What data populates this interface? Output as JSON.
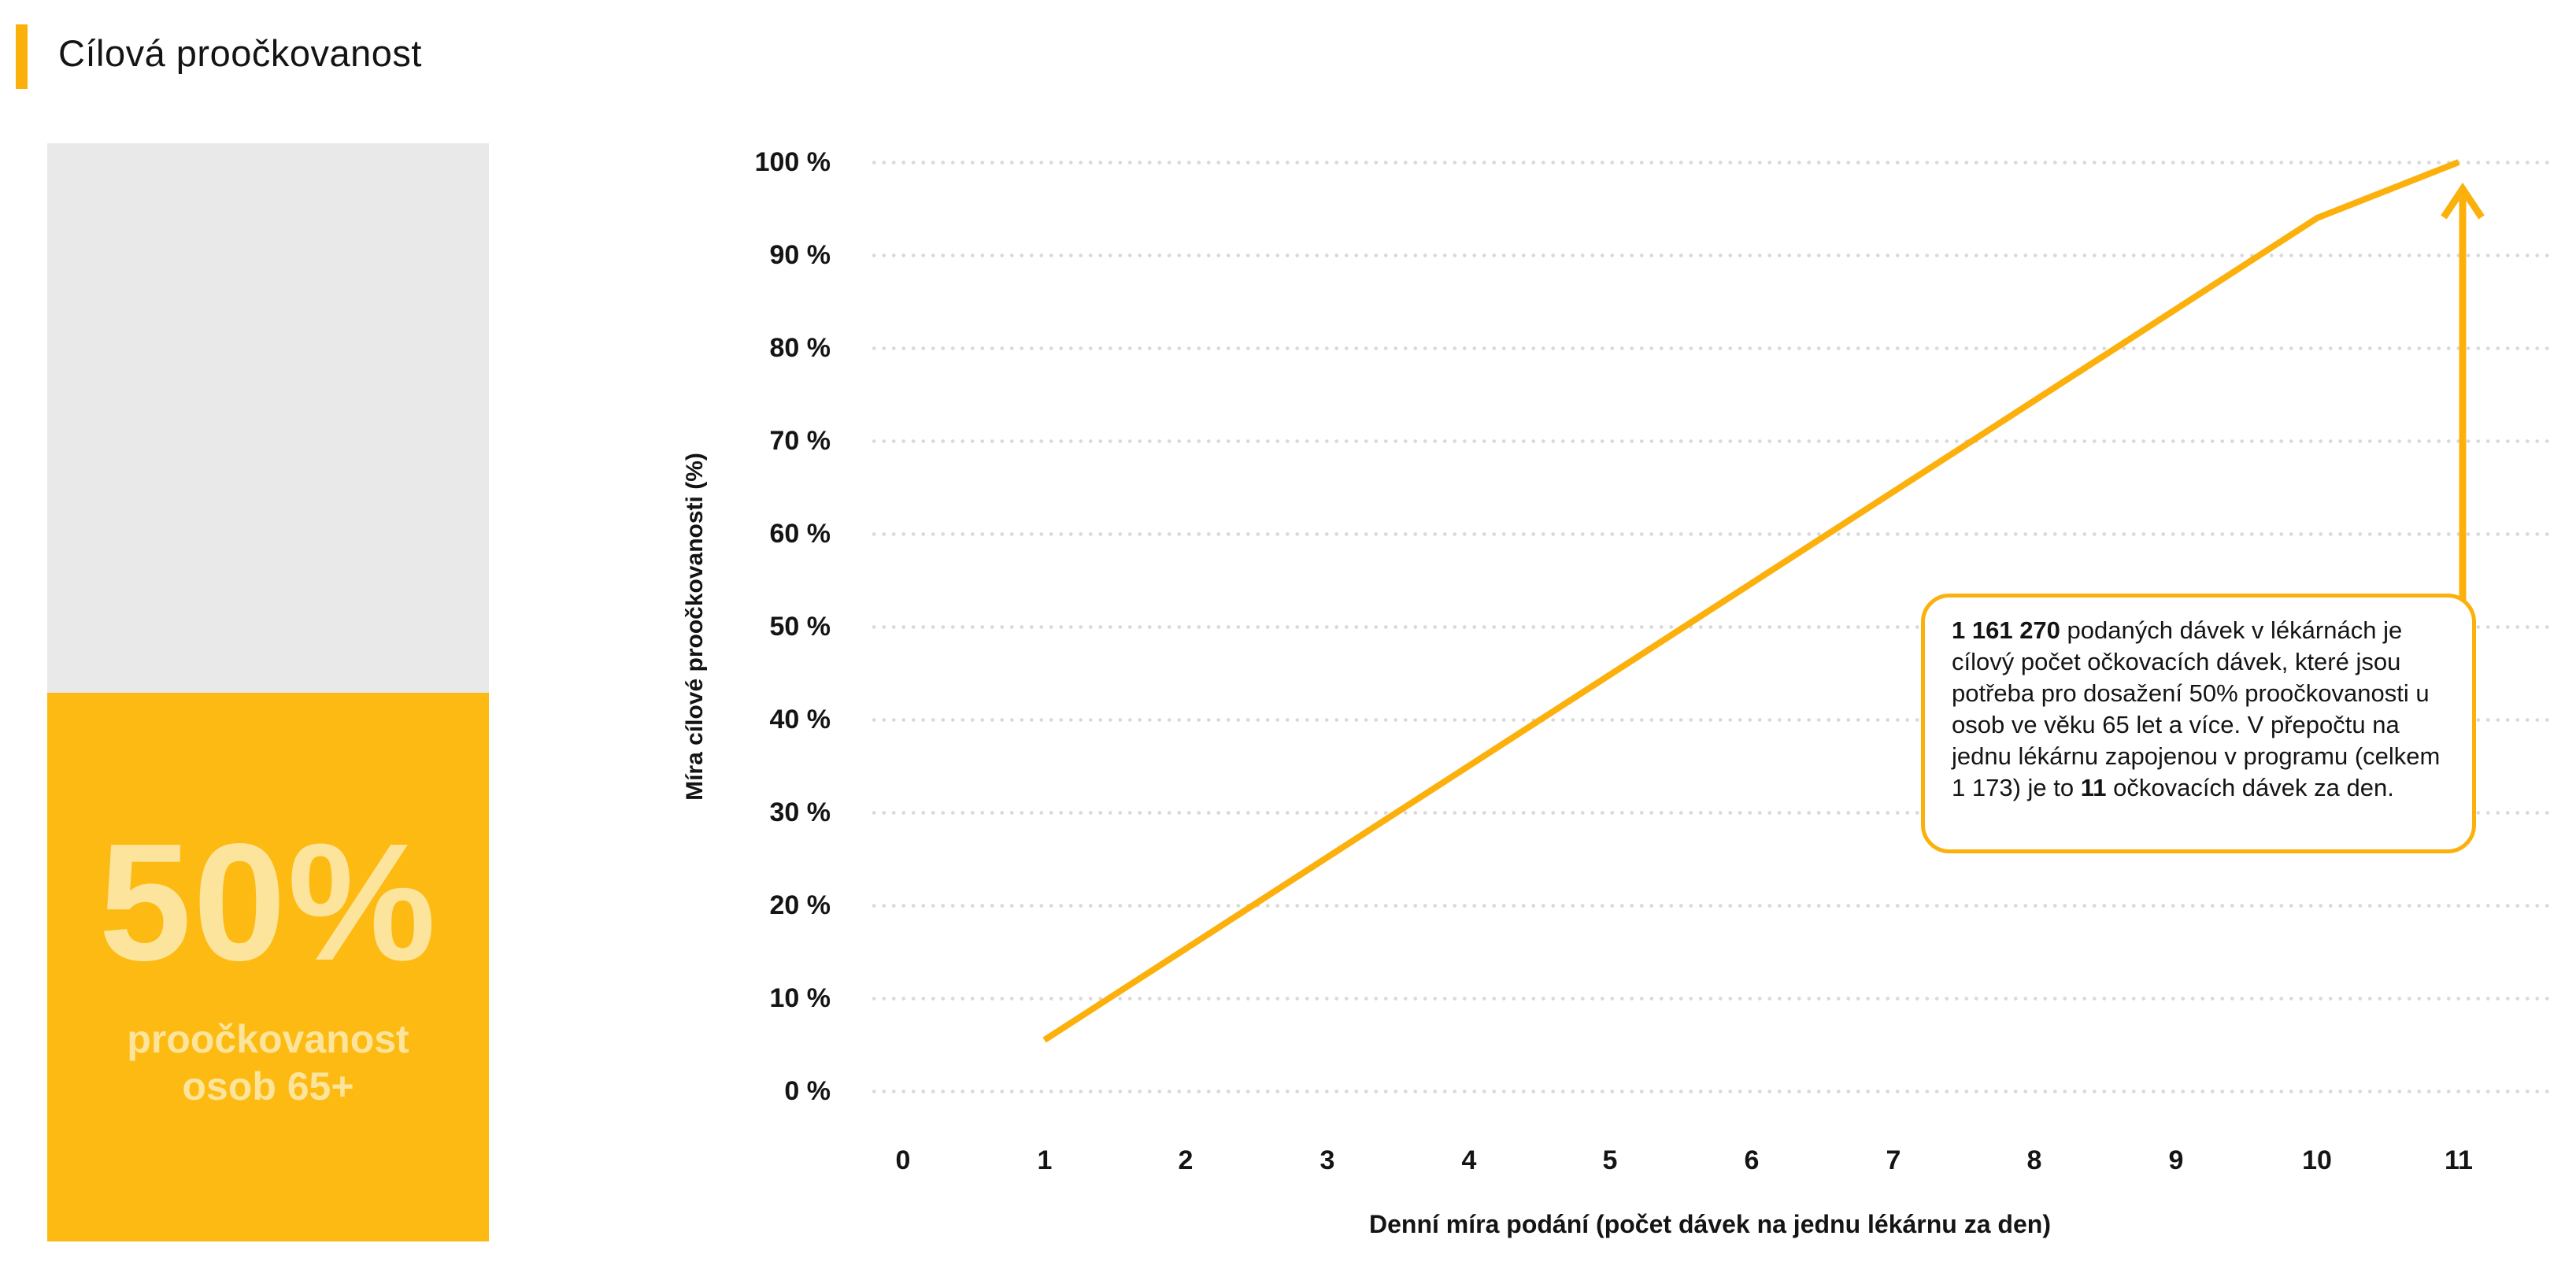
{
  "header": {
    "title": "Cílová proočkovanost"
  },
  "colors": {
    "accent_yellow": "#fcb00c",
    "block_yellow": "#fdba12",
    "pale_yellow_text": "#fce49c",
    "gray_block": "#e9e9e9",
    "grid_dot": "#d9d9d9",
    "text": "#141414"
  },
  "stat_card": {
    "value": "50%",
    "label_line1": "proočkovanost",
    "label_line2": "osob 65+",
    "fill_percent_visual": 50
  },
  "chart": {
    "y_axis_title": "Míra cílové proočkovanosti (%)",
    "x_axis_title": "Denní míra podání (počet dávek na jednu lékárnu za den)",
    "y_ticks": [
      "100 %",
      "90 %",
      "80 %",
      "70 %",
      "60 %",
      "50 %",
      "40 %",
      "30 %",
      "20 %",
      "10 %",
      "0 %"
    ],
    "x_ticks": [
      "0",
      "1",
      "2",
      "3",
      "4",
      "5",
      "6",
      "7",
      "8",
      "9",
      "10",
      "11"
    ]
  },
  "chart_data": {
    "type": "line",
    "title": "Cílová proočkovanost",
    "xlabel": "Denní míra podání (počet dávek na jednu lékárnu za den)",
    "ylabel": "Míra cílové proočkovanosti (%)",
    "xlim": [
      0,
      11
    ],
    "ylim": [
      0,
      100
    ],
    "x_tick_values": [
      0,
      1,
      2,
      3,
      4,
      5,
      6,
      7,
      8,
      9,
      10,
      11
    ],
    "y_tick_values_percent": [
      0,
      10,
      20,
      30,
      40,
      50,
      60,
      70,
      80,
      90,
      100
    ],
    "grid": "horizontal dotted gridlines only",
    "legend": "none",
    "series": [
      {
        "name": "Míra cílové proočkovanosti (%)",
        "color": "#fcb00c",
        "points": [
          {
            "x": 1,
            "y": 5.5
          },
          {
            "x": 10,
            "y": 94
          },
          {
            "x": 11,
            "y": 100
          }
        ]
      }
    ],
    "annotation_arrow_points_to": {
      "x": 11,
      "y": 100
    }
  },
  "callout": {
    "bold_1": "1 161 270",
    "segment_1": " podaných dávek v lékárnách je cílový počet očkovacích dávek, které jsou potřeba pro dosažení 50% proočkovanosti u osob ve věku 65 let a více. V přepočtu na jednu lékárnu zapojenou v programu (celkem 1 173) je to ",
    "bold_2": "11",
    "segment_2": " očkovacích dávek za den."
  }
}
